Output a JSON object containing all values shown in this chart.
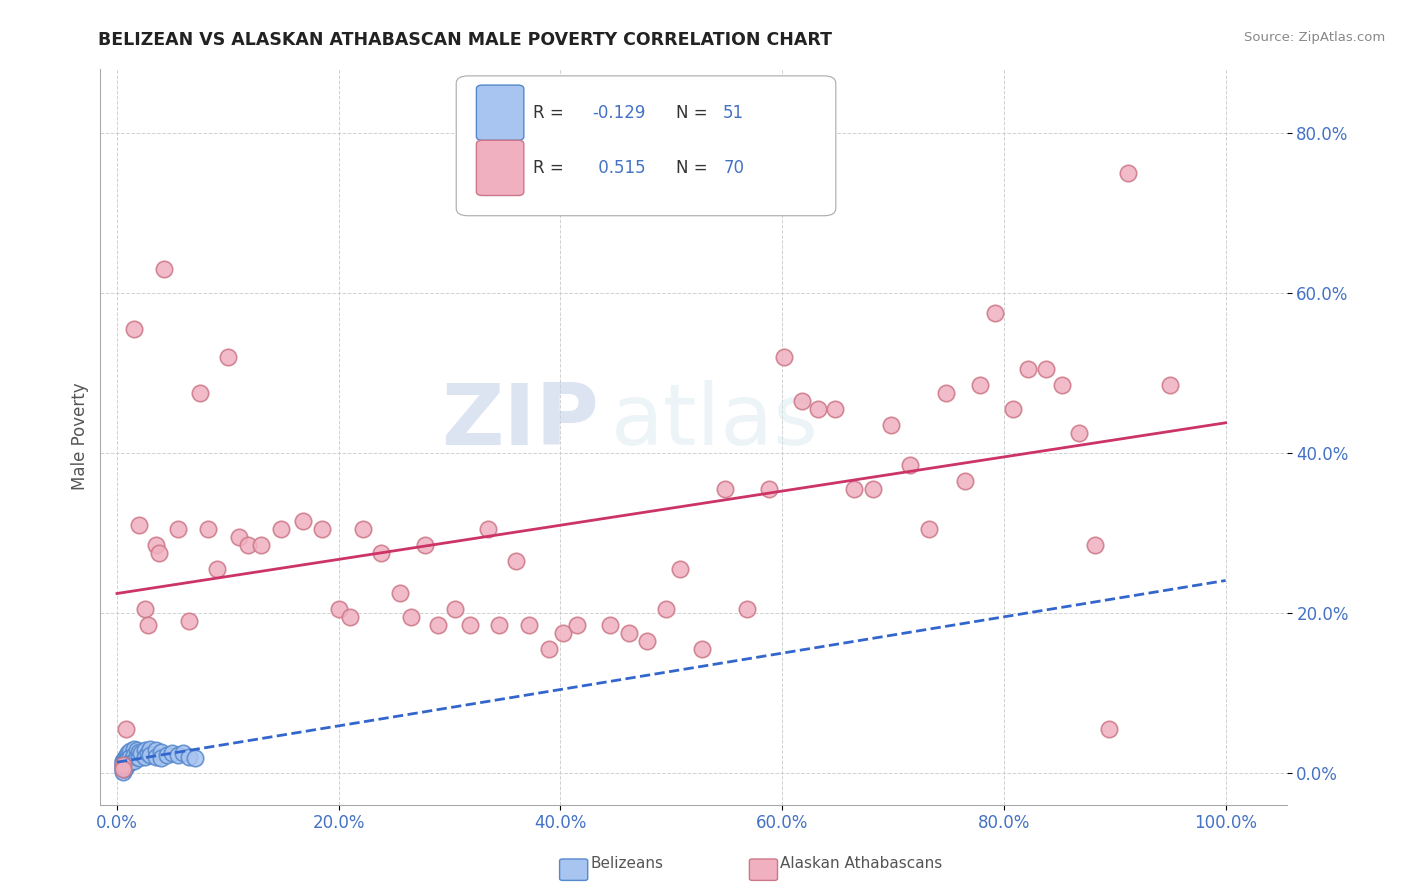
{
  "title": "BELIZEAN VS ALASKAN ATHABASCAN MALE POVERTY CORRELATION CHART",
  "source": "Source: ZipAtlas.com",
  "tick_color": "#4472c4",
  "ylabel": "Male Poverty",
  "xlim": [
    -0.015,
    1.055
  ],
  "ylim": [
    -0.04,
    0.88
  ],
  "watermark": "ZIPatlas",
  "legend": {
    "belizean_label": "Belizeans",
    "athabascan_label": "Alaskan Athabascans",
    "belizean_R": -0.129,
    "athabascan_R": 0.515,
    "belizean_N": 51,
    "athabascan_N": 70
  },
  "belizean_color": "#a8c4f0",
  "belizean_edge": "#5588cc",
  "athabascan_color": "#f0b0c0",
  "athabascan_edge": "#cc7788",
  "trendline_belizean_color": "#3366cc",
  "trendline_athabascan_color": "#cc3366",
  "belizean_points": [
    [
      0.005,
      0.015
    ],
    [
      0.005,
      0.013
    ],
    [
      0.005,
      0.011
    ],
    [
      0.005,
      0.009
    ],
    [
      0.005,
      0.007
    ],
    [
      0.005,
      0.005
    ],
    [
      0.005,
      0.003
    ],
    [
      0.005,
      0.001
    ],
    [
      0.006,
      0.016
    ],
    [
      0.006,
      0.012
    ],
    [
      0.006,
      0.008
    ],
    [
      0.006,
      0.004
    ],
    [
      0.007,
      0.018
    ],
    [
      0.007,
      0.014
    ],
    [
      0.007,
      0.01
    ],
    [
      0.007,
      0.006
    ],
    [
      0.008,
      0.02
    ],
    [
      0.008,
      0.015
    ],
    [
      0.008,
      0.01
    ],
    [
      0.009,
      0.022
    ],
    [
      0.009,
      0.016
    ],
    [
      0.009,
      0.01
    ],
    [
      0.01,
      0.025
    ],
    [
      0.01,
      0.018
    ],
    [
      0.01,
      0.012
    ],
    [
      0.012,
      0.027
    ],
    [
      0.012,
      0.02
    ],
    [
      0.012,
      0.013
    ],
    [
      0.015,
      0.03
    ],
    [
      0.015,
      0.022
    ],
    [
      0.015,
      0.015
    ],
    [
      0.018,
      0.028
    ],
    [
      0.018,
      0.02
    ],
    [
      0.02,
      0.026
    ],
    [
      0.02,
      0.018
    ],
    [
      0.022,
      0.024
    ],
    [
      0.025,
      0.028
    ],
    [
      0.025,
      0.02
    ],
    [
      0.028,
      0.025
    ],
    [
      0.03,
      0.03
    ],
    [
      0.03,
      0.022
    ],
    [
      0.035,
      0.028
    ],
    [
      0.035,
      0.02
    ],
    [
      0.04,
      0.026
    ],
    [
      0.04,
      0.018
    ],
    [
      0.045,
      0.022
    ],
    [
      0.05,
      0.025
    ],
    [
      0.055,
      0.022
    ],
    [
      0.06,
      0.025
    ],
    [
      0.065,
      0.02
    ],
    [
      0.07,
      0.018
    ]
  ],
  "athabascan_points": [
    [
      0.005,
      0.01
    ],
    [
      0.005,
      0.005
    ],
    [
      0.008,
      0.055
    ],
    [
      0.015,
      0.555
    ],
    [
      0.02,
      0.31
    ],
    [
      0.025,
      0.205
    ],
    [
      0.028,
      0.185
    ],
    [
      0.035,
      0.285
    ],
    [
      0.038,
      0.275
    ],
    [
      0.042,
      0.63
    ],
    [
      0.055,
      0.305
    ],
    [
      0.065,
      0.19
    ],
    [
      0.075,
      0.475
    ],
    [
      0.082,
      0.305
    ],
    [
      0.09,
      0.255
    ],
    [
      0.1,
      0.52
    ],
    [
      0.11,
      0.295
    ],
    [
      0.118,
      0.285
    ],
    [
      0.13,
      0.285
    ],
    [
      0.148,
      0.305
    ],
    [
      0.168,
      0.315
    ],
    [
      0.185,
      0.305
    ],
    [
      0.2,
      0.205
    ],
    [
      0.21,
      0.195
    ],
    [
      0.222,
      0.305
    ],
    [
      0.238,
      0.275
    ],
    [
      0.255,
      0.225
    ],
    [
      0.265,
      0.195
    ],
    [
      0.278,
      0.285
    ],
    [
      0.29,
      0.185
    ],
    [
      0.305,
      0.205
    ],
    [
      0.318,
      0.185
    ],
    [
      0.335,
      0.305
    ],
    [
      0.345,
      0.185
    ],
    [
      0.36,
      0.265
    ],
    [
      0.372,
      0.185
    ],
    [
      0.39,
      0.155
    ],
    [
      0.402,
      0.175
    ],
    [
      0.415,
      0.185
    ],
    [
      0.445,
      0.185
    ],
    [
      0.462,
      0.175
    ],
    [
      0.478,
      0.165
    ],
    [
      0.495,
      0.205
    ],
    [
      0.508,
      0.255
    ],
    [
      0.528,
      0.155
    ],
    [
      0.548,
      0.355
    ],
    [
      0.568,
      0.205
    ],
    [
      0.588,
      0.355
    ],
    [
      0.602,
      0.52
    ],
    [
      0.618,
      0.465
    ],
    [
      0.632,
      0.455
    ],
    [
      0.648,
      0.455
    ],
    [
      0.665,
      0.355
    ],
    [
      0.682,
      0.355
    ],
    [
      0.698,
      0.435
    ],
    [
      0.715,
      0.385
    ],
    [
      0.732,
      0.305
    ],
    [
      0.748,
      0.475
    ],
    [
      0.765,
      0.365
    ],
    [
      0.778,
      0.485
    ],
    [
      0.792,
      0.575
    ],
    [
      0.808,
      0.455
    ],
    [
      0.822,
      0.505
    ],
    [
      0.838,
      0.505
    ],
    [
      0.852,
      0.485
    ],
    [
      0.868,
      0.425
    ],
    [
      0.882,
      0.285
    ],
    [
      0.895,
      0.055
    ],
    [
      0.912,
      0.75
    ],
    [
      0.95,
      0.485
    ]
  ]
}
